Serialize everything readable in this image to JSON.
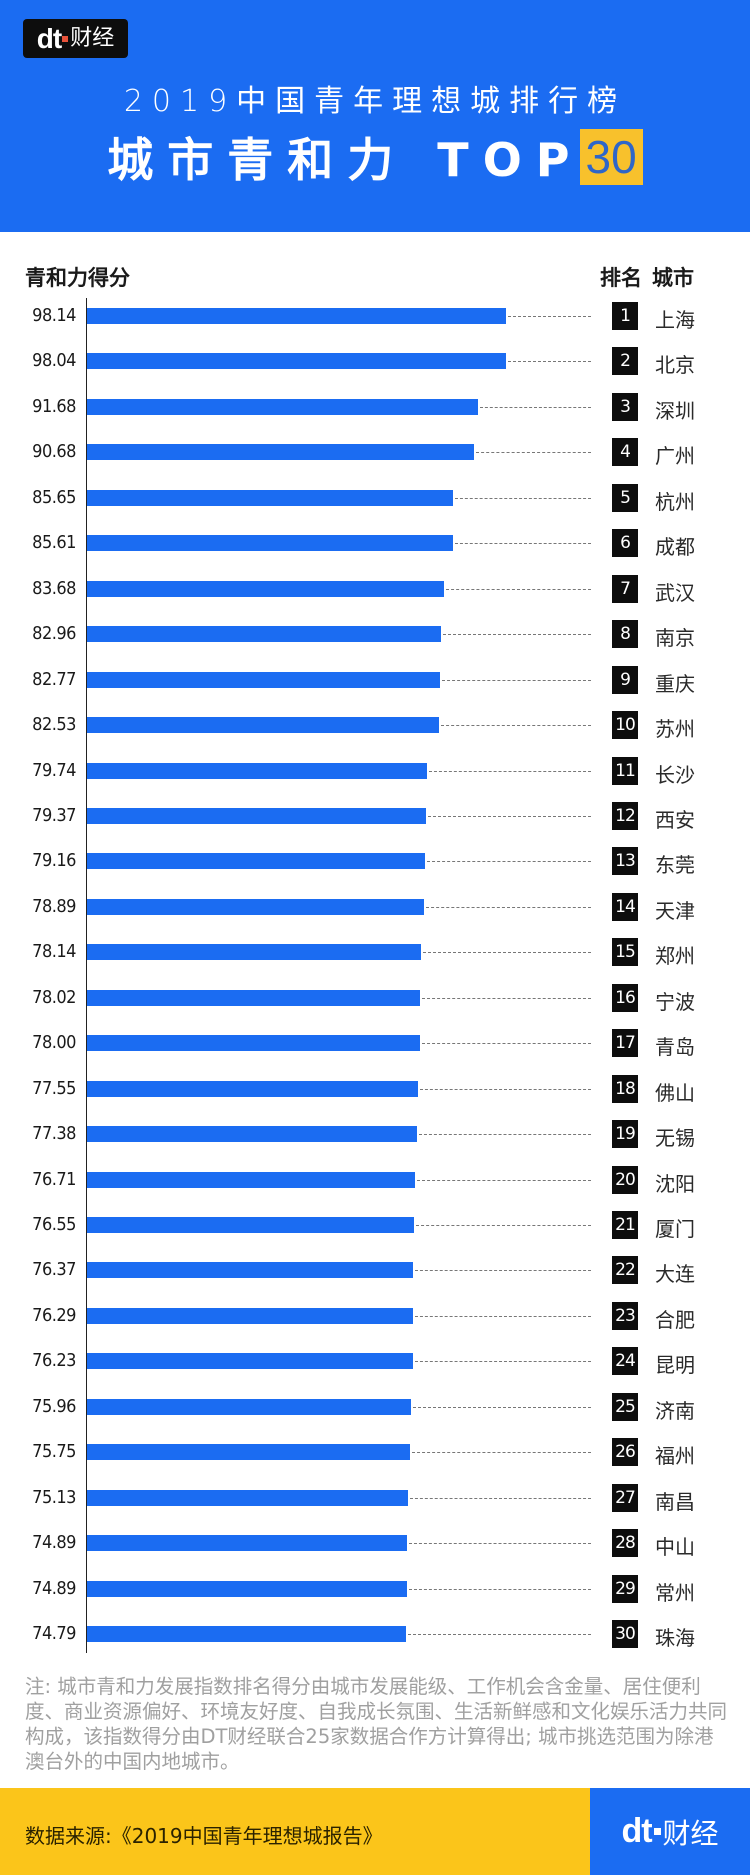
{
  "header": {
    "logo": {
      "mark": "dt",
      "text": "财经"
    },
    "title_line1": "2019中国青年理想城排行榜",
    "title_line2": "城市青和力 TOP",
    "title_highlight": "30",
    "colors": {
      "background": "#1b6cf2",
      "highlight_bg": "#f8c12c",
      "highlight_text": "#2f66c8"
    }
  },
  "columns": {
    "score": "青和力得分",
    "rank": "排名",
    "city": "城市"
  },
  "rows": [
    {
      "rank": "1",
      "city": "上海",
      "score": "98.14"
    },
    {
      "rank": "2",
      "city": "北京",
      "score": "98.04"
    },
    {
      "rank": "3",
      "city": "深圳",
      "score": "91.68"
    },
    {
      "rank": "4",
      "city": "广州",
      "score": "90.68"
    },
    {
      "rank": "5",
      "city": "杭州",
      "score": "85.65"
    },
    {
      "rank": "6",
      "city": "成都",
      "score": "85.61"
    },
    {
      "rank": "7",
      "city": "武汉",
      "score": "83.68"
    },
    {
      "rank": "8",
      "city": "南京",
      "score": "82.96"
    },
    {
      "rank": "9",
      "city": "重庆",
      "score": "82.77"
    },
    {
      "rank": "10",
      "city": "苏州",
      "score": "82.53"
    },
    {
      "rank": "11",
      "city": "长沙",
      "score": "79.74"
    },
    {
      "rank": "12",
      "city": "西安",
      "score": "79.37"
    },
    {
      "rank": "13",
      "city": "东莞",
      "score": "79.16"
    },
    {
      "rank": "14",
      "city": "天津",
      "score": "78.89"
    },
    {
      "rank": "15",
      "city": "郑州",
      "score": "78.14"
    },
    {
      "rank": "16",
      "city": "宁波",
      "score": "78.02"
    },
    {
      "rank": "17",
      "city": "青岛",
      "score": "78.00"
    },
    {
      "rank": "18",
      "city": "佛山",
      "score": "77.55"
    },
    {
      "rank": "19",
      "city": "无锡",
      "score": "77.38"
    },
    {
      "rank": "20",
      "city": "沈阳",
      "score": "76.71"
    },
    {
      "rank": "21",
      "city": "厦门",
      "score": "76.55"
    },
    {
      "rank": "22",
      "city": "大连",
      "score": "76.37"
    },
    {
      "rank": "23",
      "city": "合肥",
      "score": "76.29"
    },
    {
      "rank": "24",
      "city": "昆明",
      "score": "76.23"
    },
    {
      "rank": "25",
      "city": "济南",
      "score": "75.96"
    },
    {
      "rank": "26",
      "city": "福州",
      "score": "75.75"
    },
    {
      "rank": "27",
      "city": "南昌",
      "score": "75.13"
    },
    {
      "rank": "28",
      "city": "中山",
      "score": "74.89"
    },
    {
      "rank": "29",
      "city": "常州",
      "score": "74.89"
    },
    {
      "rank": "30",
      "city": "珠海",
      "score": "74.79"
    }
  ],
  "note": "注: 城市青和力发展指数排名得分由城市发展能级、工作机会含金量、居住便利度、商业资源偏好、环境友好度、自我成长氛围、生活新鲜感和文化娱乐活力共同构成，该指数得分由DT财经联合25家数据合作方计算得出; 城市挑选范围为除港澳台外的中国内地城市。",
  "footer": {
    "source": "数据来源:《2019中国青年理想城报告》",
    "logo": {
      "mark": "dt",
      "text": "财经"
    },
    "colors": {
      "background": "#fbc51a",
      "brand_bg": "#1b6cf2"
    }
  },
  "chart_data": {
    "type": "bar",
    "orientation": "horizontal",
    "title": "2019中国青年理想城排行榜 城市青和力 TOP30",
    "xlabel": "青和力得分",
    "ylabel": "排名 城市",
    "categories": [
      "上海",
      "北京",
      "深圳",
      "广州",
      "杭州",
      "成都",
      "武汉",
      "南京",
      "重庆",
      "苏州",
      "长沙",
      "西安",
      "东莞",
      "天津",
      "郑州",
      "宁波",
      "青岛",
      "佛山",
      "无锡",
      "沈阳",
      "厦门",
      "大连",
      "合肥",
      "昆明",
      "济南",
      "福州",
      "南昌",
      "中山",
      "常州",
      "珠海"
    ],
    "values": [
      98.14,
      98.04,
      91.68,
      90.68,
      85.65,
      85.61,
      83.68,
      82.96,
      82.77,
      82.53,
      79.74,
      79.37,
      79.16,
      78.89,
      78.14,
      78.02,
      78.0,
      77.55,
      77.38,
      76.71,
      76.55,
      76.37,
      76.29,
      76.23,
      75.96,
      75.75,
      75.13,
      74.89,
      74.89,
      74.79
    ],
    "bar_color": "#1b6cf2",
    "grid": false,
    "legend": false,
    "data_labels": "left of bars"
  }
}
